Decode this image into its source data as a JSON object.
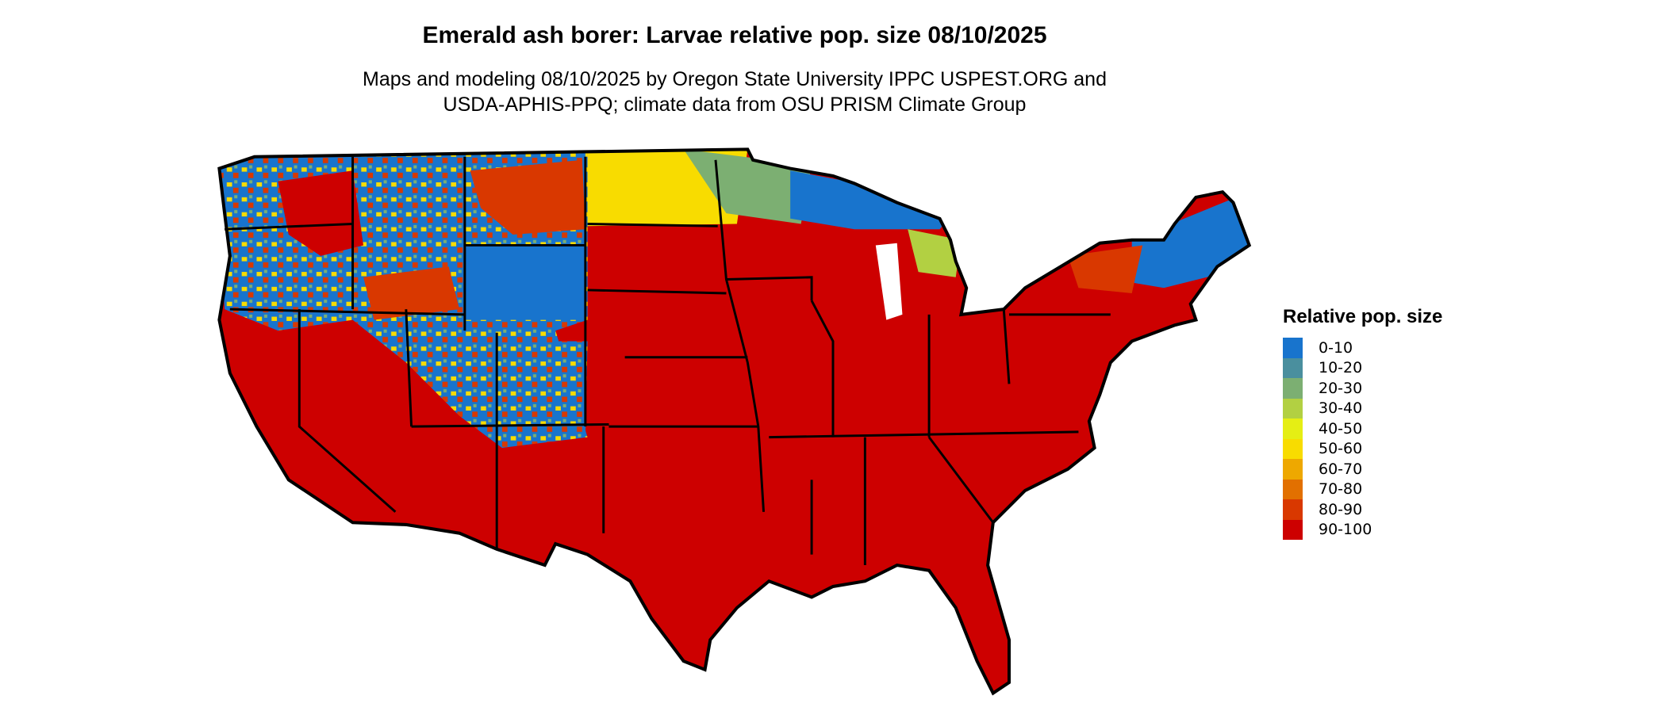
{
  "title": "Emerald ash borer: Larvae relative pop. size 08/10/2025",
  "subtitle_line1": "Maps and modeling 08/10/2025 by Oregon State University IPPC USPEST.ORG and",
  "subtitle_line2": "USDA-APHIS-PPQ; climate data from OSU PRISM Climate Group",
  "legend": {
    "title": "Relative pop. size",
    "items": [
      {
        "label": "0-10",
        "color": "#1874CD"
      },
      {
        "label": "10-20",
        "color": "#4A8F9E"
      },
      {
        "label": "20-30",
        "color": "#7CAF72"
      },
      {
        "label": "30-40",
        "color": "#B2D042"
      },
      {
        "label": "40-50",
        "color": "#E5EE14"
      },
      {
        "label": "50-60",
        "color": "#F8DC00"
      },
      {
        "label": "60-70",
        "color": "#EEA800"
      },
      {
        "label": "70-80",
        "color": "#E27000"
      },
      {
        "label": "80-90",
        "color": "#D93800"
      },
      {
        "label": "90-100",
        "color": "#CD0000"
      }
    ]
  }
}
